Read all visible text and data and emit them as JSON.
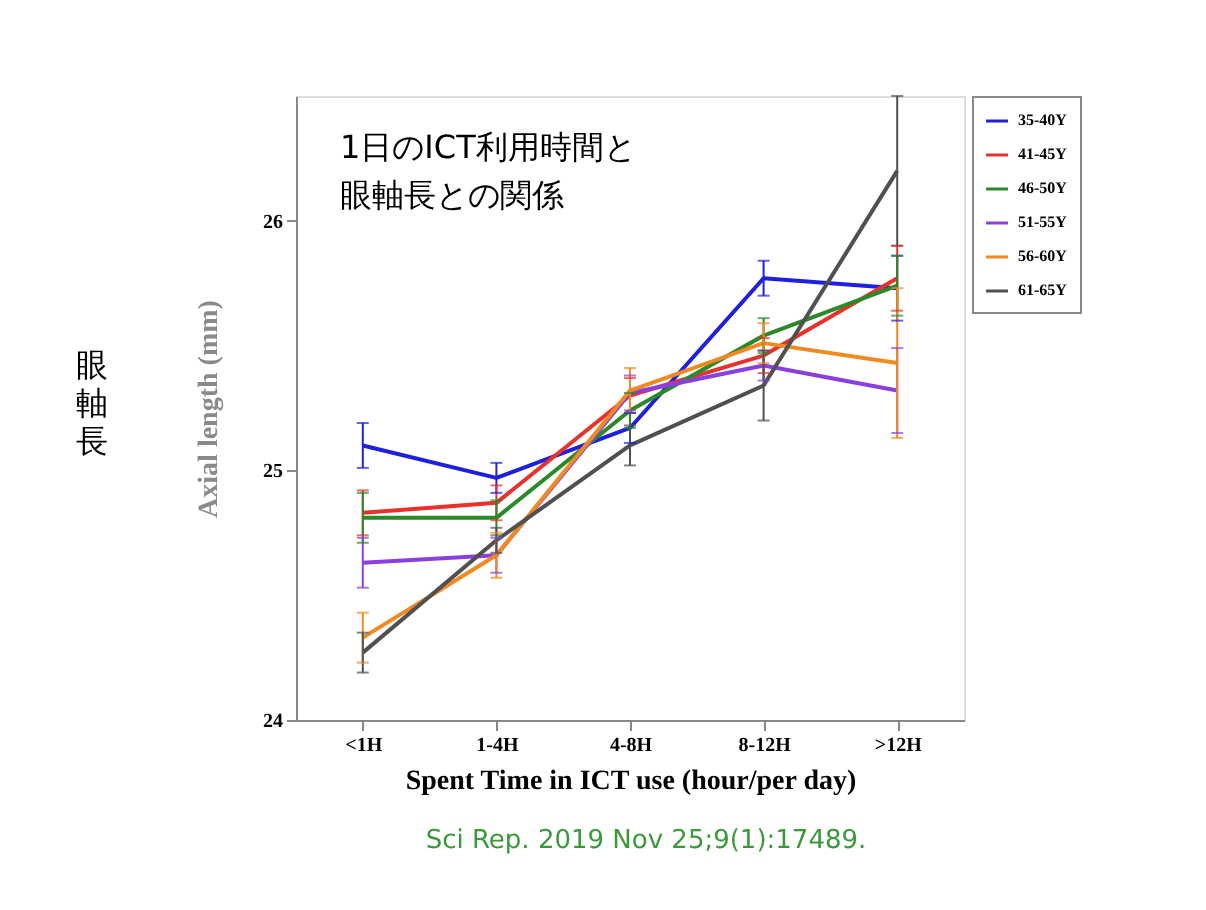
{
  "chart_data": {
    "type": "line",
    "title": "1日のICT利用時間と眼軸長との関係",
    "xlabel": "Spent Time in ICT use (hour/per day)",
    "ylabel": "Axial length (mm)",
    "categories": [
      "<1H",
      "1-4H",
      "4-8H",
      "8-12H",
      ">12H"
    ],
    "series": [
      {
        "name": "35-40Y",
        "color": "#1f1fe0",
        "values": [
          25.1,
          24.97,
          25.17,
          25.77,
          25.73
        ],
        "errors": [
          0.09,
          0.06,
          0.06,
          0.07,
          0.13
        ]
      },
      {
        "name": "41-45Y",
        "color": "#e8312a",
        "values": [
          24.83,
          24.87,
          25.3,
          25.46,
          25.77
        ],
        "errors": [
          0.09,
          0.07,
          0.07,
          0.07,
          0.13
        ]
      },
      {
        "name": "46-50Y",
        "color": "#2a8a2a",
        "values": [
          24.81,
          24.81,
          25.24,
          25.54,
          25.74
        ],
        "errors": [
          0.1,
          0.07,
          0.07,
          0.07,
          0.12
        ]
      },
      {
        "name": "51-55Y",
        "color": "#8a3fe0",
        "values": [
          24.63,
          24.66,
          25.31,
          25.42,
          25.32
        ],
        "errors": [
          0.1,
          0.07,
          0.07,
          0.06,
          0.17
        ]
      },
      {
        "name": "56-60Y",
        "color": "#f08a20",
        "values": [
          24.33,
          24.66,
          25.32,
          25.51,
          25.43
        ],
        "errors": [
          0.1,
          0.09,
          0.09,
          0.08,
          0.3
        ]
      },
      {
        "name": "61-65Y",
        "color": "#505050",
        "values": [
          24.27,
          24.72,
          25.1,
          25.34,
          26.2
        ],
        "errors": [
          0.08,
          0.05,
          0.08,
          0.14,
          0.3
        ]
      }
    ],
    "ylim": [
      24,
      26.5
    ],
    "yticks": [
      24,
      25,
      26
    ],
    "grid": false,
    "legend": "top right",
    "marker": "none",
    "line_style": "solid",
    "annotations": [
      "眼軸長",
      "Sci Rep. 2019 Nov 25;9(1):17489."
    ]
  }
}
